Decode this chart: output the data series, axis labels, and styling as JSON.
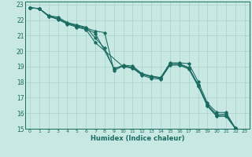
{
  "xlabel": "Humidex (Indice chaleur)",
  "bg_color": "#c8e8e4",
  "line_color": "#1a6b60",
  "grid_color": "#a8d0cc",
  "xlim": [
    -0.5,
    23.5
  ],
  "ylim": [
    15,
    23.2
  ],
  "xticks": [
    0,
    1,
    2,
    3,
    4,
    5,
    6,
    7,
    8,
    9,
    10,
    11,
    12,
    13,
    14,
    15,
    16,
    17,
    18,
    19,
    20,
    21,
    22,
    23
  ],
  "yticks": [
    15,
    16,
    17,
    18,
    19,
    20,
    21,
    22,
    23
  ],
  "lines": [
    {
      "x": [
        0,
        1,
        2,
        3,
        4,
        5,
        6,
        7,
        8,
        9,
        10,
        11,
        12,
        13,
        14,
        15,
        16,
        17,
        18,
        19,
        20,
        21,
        22,
        23
      ],
      "y": [
        22.8,
        22.75,
        22.3,
        22.2,
        21.85,
        21.7,
        21.55,
        20.85,
        20.2,
        18.85,
        19.1,
        19.05,
        18.55,
        18.35,
        18.3,
        19.25,
        19.25,
        19.2,
        18.05,
        16.65,
        16.05,
        16.05,
        15.0,
        null
      ]
    },
    {
      "x": [
        0,
        1,
        2,
        3,
        4,
        5,
        6,
        7,
        8,
        9,
        10,
        11,
        12,
        13,
        14,
        15,
        16,
        17,
        18,
        19,
        20,
        21,
        22
      ],
      "y": [
        22.8,
        22.75,
        22.3,
        22.1,
        21.8,
        21.65,
        21.5,
        21.3,
        21.2,
        18.75,
        19.05,
        18.95,
        18.55,
        18.4,
        18.3,
        19.2,
        19.2,
        18.95,
        17.85,
        16.55,
        15.9,
        15.95,
        15.05
      ]
    },
    {
      "x": [
        0,
        1,
        2,
        3,
        4,
        5,
        6,
        7,
        9,
        10,
        11,
        12,
        13,
        14,
        15,
        16,
        17,
        18,
        19,
        20,
        21,
        22
      ],
      "y": [
        22.8,
        22.75,
        22.25,
        22.1,
        21.8,
        21.6,
        21.45,
        21.15,
        18.9,
        19.05,
        18.95,
        18.5,
        18.35,
        18.25,
        19.15,
        19.15,
        18.9,
        17.8,
        16.5,
        15.85,
        15.85,
        15.05
      ]
    },
    {
      "x": [
        0,
        1,
        2,
        3,
        4,
        5,
        6,
        7,
        10,
        11,
        12,
        13,
        14,
        15,
        16,
        17,
        18,
        19,
        20,
        21,
        22
      ],
      "y": [
        22.8,
        22.75,
        22.25,
        22.05,
        21.75,
        21.55,
        21.4,
        20.55,
        19.0,
        18.9,
        18.45,
        18.25,
        18.2,
        19.1,
        19.1,
        18.85,
        17.75,
        16.45,
        15.8,
        15.8,
        15.0
      ]
    }
  ]
}
